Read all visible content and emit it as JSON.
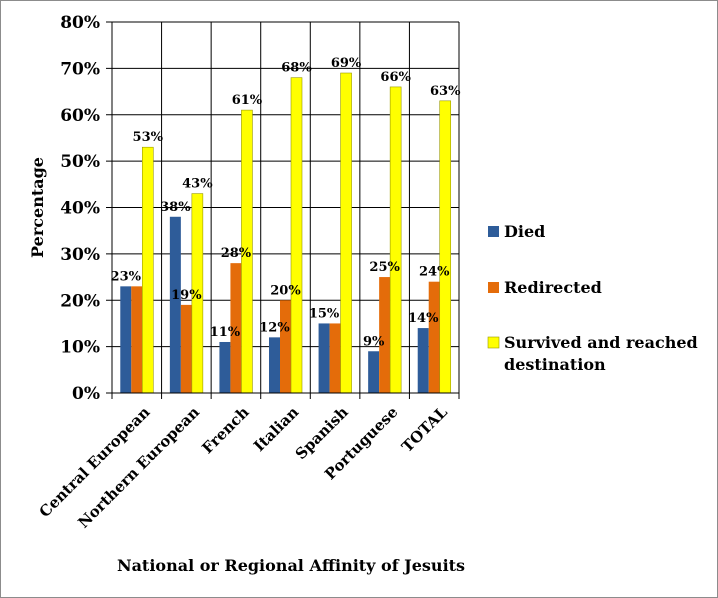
{
  "chart_data": {
    "type": "bar",
    "categories": [
      "Central European",
      "Northern European",
      "French",
      "Italian",
      "Spanish",
      "Portuguese",
      "TOTAL"
    ],
    "series": [
      {
        "name": "Died",
        "color": "#2e5c99",
        "values": [
          23,
          38,
          11,
          12,
          15,
          9,
          14
        ]
      },
      {
        "name": "Redirected",
        "color": "#e46c0a",
        "values": [
          23,
          19,
          28,
          20,
          15,
          25,
          24
        ]
      },
      {
        "name": "Survived and reached destination",
        "color": "#ffff00",
        "values": [
          53,
          43,
          61,
          68,
          69,
          66,
          63
        ]
      }
    ],
    "data_labels": [
      [
        "23%",
        "",
        "53%"
      ],
      [
        "38%",
        "19%",
        "43%"
      ],
      [
        "11%",
        "28%",
        "61%"
      ],
      [
        "12%",
        "20%",
        "68%"
      ],
      [
        "15%",
        "",
        "69%"
      ],
      [
        "9%",
        "25%",
        "66%"
      ],
      [
        "14%",
        "24%",
        "63%"
      ]
    ],
    "y_tick_labels": [
      "0%",
      "10%",
      "20%",
      "30%",
      "40%",
      "50%",
      "60%",
      "70%",
      "80%"
    ],
    "ylim": [
      0,
      80
    ],
    "ylabel": "Percentage",
    "xlabel": "National or Regional Affinity of Jesuits",
    "title": "",
    "grid": true,
    "legend_position": "right"
  }
}
